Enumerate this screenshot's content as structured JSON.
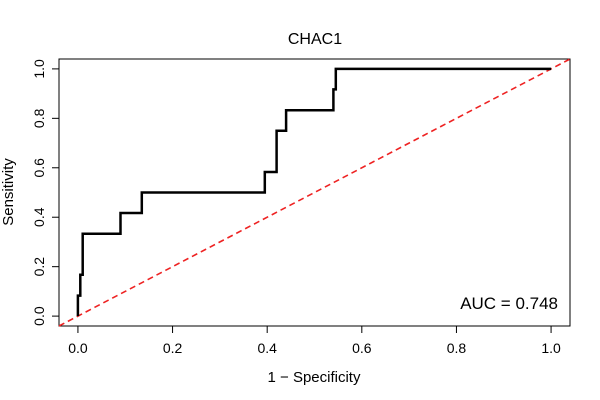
{
  "chart_data": {
    "type": "line",
    "title": "CHAC1",
    "xlabel": "1 − Specificity",
    "ylabel": "Sensitivity",
    "xlim": [
      -0.04,
      1.04
    ],
    "ylim": [
      -0.04,
      1.04
    ],
    "x_ticks": [
      0.0,
      0.2,
      0.4,
      0.6,
      0.8,
      1.0
    ],
    "x_tick_labels": [
      "0.0",
      "0.2",
      "0.4",
      "0.6",
      "0.8",
      "1.0"
    ],
    "y_ticks": [
      0.0,
      0.2,
      0.4,
      0.6,
      0.8,
      1.0
    ],
    "y_tick_labels": [
      "0.0",
      "0.2",
      "0.4",
      "0.6",
      "0.8",
      "1.0"
    ],
    "grid": false,
    "series": [
      {
        "type": "step",
        "color": "#000000",
        "x": [
          0.0,
          0.0,
          0.005,
          0.005,
          0.01,
          0.01,
          0.09,
          0.09,
          0.135,
          0.135,
          0.395,
          0.395,
          0.42,
          0.42,
          0.44,
          0.44,
          0.54,
          0.54,
          0.545,
          0.545,
          1.0
        ],
        "y": [
          0.0,
          0.083,
          0.083,
          0.167,
          0.167,
          0.333,
          0.333,
          0.417,
          0.417,
          0.5,
          0.5,
          0.583,
          0.583,
          0.75,
          0.75,
          0.833,
          0.833,
          0.917,
          0.917,
          1.0,
          1.0
        ]
      },
      {
        "type": "line",
        "style": "dashed",
        "color": "#ee2222",
        "x": [
          -0.04,
          1.04
        ],
        "y": [
          -0.04,
          1.04
        ]
      }
    ],
    "annotation": "AUC = 0.748"
  }
}
